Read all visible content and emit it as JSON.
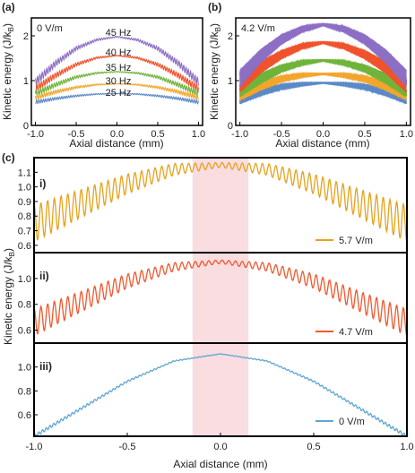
{
  "panel_a": {
    "label": "(a)",
    "field_label": "0 V/m",
    "ylabel": "Kinetic energy (J/k",
    "ylabel_sub": "B",
    "ylabel_close": ")",
    "xlabel": "Axial distance (mm)",
    "x_ticks": [
      "-1.0",
      "-0.5",
      "0.0",
      "0.5",
      "1.0"
    ],
    "y_ticks": [
      "0",
      "1",
      "2"
    ],
    "series_labels": [
      "45 Hz",
      "40 Hz",
      "35 Hz",
      "30 Hz",
      "25 Hz"
    ]
  },
  "panel_b": {
    "label": "(b)",
    "field_label": "4.2 V/m",
    "ylabel": "Kinetic energy (J/k",
    "ylabel_sub": "B",
    "ylabel_close": ")",
    "xlabel": "Axial distance (mm)",
    "x_ticks": [
      "-1.0",
      "-0.5",
      "0.0",
      "0.5",
      "1.0"
    ],
    "y_ticks": [
      "0",
      "1",
      "2"
    ]
  },
  "panel_c": {
    "label": "(c)",
    "ylabel": "Kinetic energy (J/k",
    "ylabel_sub": "B",
    "ylabel_close": ")",
    "xlabel": "Axial distance (mm)",
    "x_ticks": [
      "-1.0",
      "-0.5",
      "0.0",
      "0.5",
      "1.0"
    ],
    "sub_panels": [
      {
        "label": "i)",
        "legend": "5.7 V/m",
        "y_ticks": [
          "0.6",
          "0.7",
          "0.8",
          "0.9",
          "1.0",
          "1.1"
        ]
      },
      {
        "label": "ii)",
        "legend": "4.7 V/m",
        "y_ticks": [
          "0.6",
          "0.8",
          "1.0"
        ]
      },
      {
        "label": "iii)",
        "legend": "0 V/m",
        "y_ticks": [
          "0.6",
          "0.8",
          "1.0"
        ]
      }
    ]
  },
  "colors": {
    "c45": "#8c6fc4",
    "c40": "#f0522b",
    "c35": "#6fb43a",
    "c30": "#f2a52b",
    "c25": "#5a88c8",
    "c_i": "#e6a21e",
    "c_ii": "#f0582e",
    "c_iii": "#5fa6d3",
    "shade": "#f9dde0"
  },
  "chart_data": [
    {
      "type": "line",
      "panel": "a",
      "xlabel": "Axial distance (mm)",
      "ylabel": "Kinetic energy (J/kB)",
      "xlim": [
        -1.05,
        1.05
      ],
      "ylim": [
        0,
        2.4
      ],
      "x": [
        -1.0,
        -0.75,
        -0.5,
        -0.25,
        0.0,
        0.25,
        0.5,
        0.75,
        1.0
      ],
      "series": [
        {
          "name": "45 Hz",
          "values": [
            0.97,
            1.39,
            1.72,
            1.91,
            1.98,
            1.91,
            1.72,
            1.39,
            0.97
          ]
        },
        {
          "name": "40 Hz",
          "values": [
            0.82,
            1.12,
            1.36,
            1.51,
            1.56,
            1.51,
            1.36,
            1.12,
            0.82
          ]
        },
        {
          "name": "35 Hz",
          "values": [
            0.71,
            0.91,
            1.08,
            1.17,
            1.2,
            1.17,
            1.08,
            0.91,
            0.71
          ]
        },
        {
          "name": "30 Hz",
          "values": [
            0.62,
            0.75,
            0.85,
            0.91,
            0.93,
            0.91,
            0.85,
            0.75,
            0.62
          ]
        },
        {
          "name": "25 Hz",
          "values": [
            0.52,
            0.6,
            0.66,
            0.7,
            0.71,
            0.7,
            0.66,
            0.6,
            0.52
          ]
        }
      ]
    },
    {
      "type": "line",
      "panel": "b",
      "xlabel": "Axial distance (mm)",
      "ylabel": "Kinetic energy (J/kB)",
      "xlim": [
        -1.05,
        1.05
      ],
      "ylim": [
        0,
        2.4
      ],
      "x": [
        -1.0,
        -0.75,
        -0.5,
        -0.25,
        0.0,
        0.25,
        0.5,
        0.75,
        1.0
      ],
      "series": [
        {
          "color": "purple",
          "values": [
            1.05,
            1.55,
            1.92,
            2.15,
            2.25,
            2.15,
            1.92,
            1.55,
            1.05
          ]
        },
        {
          "color": "red",
          "values": [
            0.9,
            1.3,
            1.58,
            1.77,
            1.85,
            1.77,
            1.58,
            1.3,
            0.9
          ]
        },
        {
          "color": "green",
          "values": [
            0.78,
            1.05,
            1.27,
            1.4,
            1.45,
            1.4,
            1.27,
            1.05,
            0.78
          ]
        },
        {
          "color": "orange",
          "values": [
            0.68,
            0.88,
            1.04,
            1.12,
            1.15,
            1.12,
            1.04,
            0.88,
            0.68
          ]
        },
        {
          "color": "blue",
          "values": [
            0.58,
            0.74,
            0.86,
            0.92,
            0.95,
            0.92,
            0.86,
            0.74,
            0.58
          ]
        }
      ]
    },
    {
      "type": "line",
      "panel": "c-i",
      "xlim": [
        -1.0,
        1.0
      ],
      "ylim": [
        0.55,
        1.2
      ],
      "x": [
        -1.0,
        -0.5,
        -0.25,
        0.0,
        0.25,
        0.5,
        1.0
      ],
      "series": [
        {
          "name": "5.7 V/m",
          "values": [
            0.75,
            1.02,
            1.12,
            1.15,
            1.12,
            1.02,
            0.75
          ]
        }
      ],
      "shaded_x_range": [
        -0.15,
        0.15
      ]
    },
    {
      "type": "line",
      "panel": "c-ii",
      "xlim": [
        -1.0,
        1.0
      ],
      "ylim": [
        0.5,
        1.2
      ],
      "x": [
        -1.0,
        -0.5,
        -0.25,
        0.0,
        0.25,
        0.5,
        1.0
      ],
      "series": [
        {
          "name": "4.7 V/m",
          "values": [
            0.66,
            0.98,
            1.09,
            1.13,
            1.09,
            0.98,
            0.66
          ]
        }
      ],
      "shaded_x_range": [
        -0.15,
        0.15
      ]
    },
    {
      "type": "line",
      "panel": "c-iii",
      "xlim": [
        -1.0,
        1.0
      ],
      "ylim": [
        0.42,
        1.2
      ],
      "x": [
        -1.0,
        -0.5,
        -0.25,
        0.0,
        0.25,
        0.5,
        1.0
      ],
      "series": [
        {
          "name": "0 V/m",
          "values": [
            0.42,
            0.88,
            1.05,
            1.11,
            1.05,
            0.88,
            0.42
          ]
        }
      ],
      "shaded_x_range": [
        -0.15,
        0.15
      ]
    }
  ]
}
